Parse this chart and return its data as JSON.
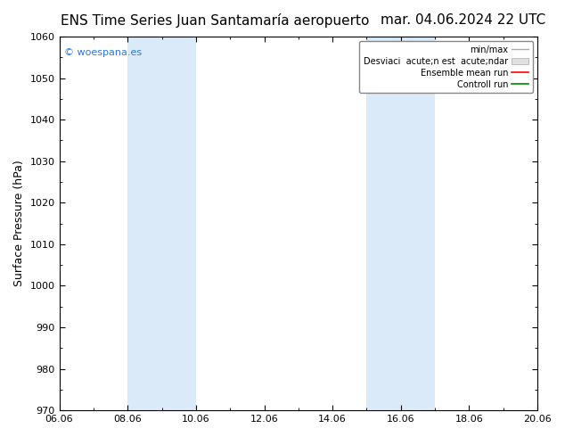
{
  "title_left": "ENS Time Series Juan Santamaría aeropuerto",
  "title_right": "mar. 04.06.2024 22 UTC",
  "ylabel": "Surface Pressure (hPa)",
  "ylim": [
    970,
    1060
  ],
  "yticks": [
    970,
    980,
    990,
    1000,
    1010,
    1020,
    1030,
    1040,
    1050,
    1060
  ],
  "xlim_num": [
    0,
    14
  ],
  "xtick_labels": [
    "06.06",
    "08.06",
    "10.06",
    "12.06",
    "14.06",
    "16.06",
    "18.06",
    "20.06"
  ],
  "xtick_positions": [
    0,
    2,
    4,
    6,
    8,
    10,
    12,
    14
  ],
  "shade_bands": [
    {
      "xmin": 2,
      "xmax": 4
    },
    {
      "xmin": 9,
      "xmax": 11
    }
  ],
  "shade_color": "#daeaf8",
  "bg_color": "#ffffff",
  "watermark": "© woespana.es",
  "watermark_color": "#3377cc",
  "legend_label_1": "min/max",
  "legend_label_2": "Desviaci  acute;n est  acute;ndar",
  "legend_label_3": "Ensemble mean run",
  "legend_label_4": "Controll run",
  "legend_color_1": "#aaaaaa",
  "legend_color_2": "#cccccc",
  "legend_color_3": "#ff0000",
  "legend_color_4": "#008800",
  "title_fontsize": 11,
  "tick_fontsize": 8,
  "ylabel_fontsize": 9,
  "watermark_fontsize": 8
}
